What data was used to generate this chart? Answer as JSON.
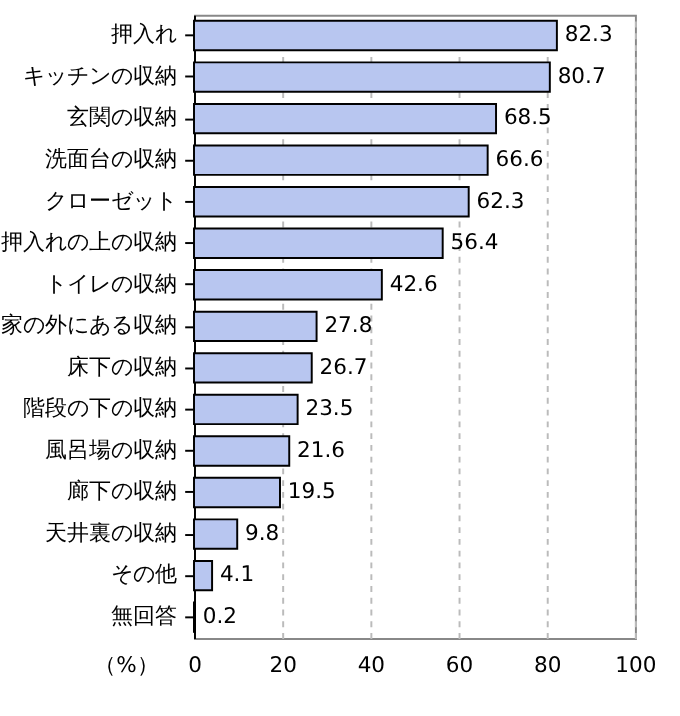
{
  "chart_data": {
    "type": "bar",
    "orientation": "horizontal",
    "xlabel": "（%）",
    "categories": [
      "押入れ",
      "キッチンの収納",
      "玄関の収納",
      "洗面台の収納",
      "クローゼット",
      "押入れの上の収納",
      "トイレの収納",
      "家の外にある収納",
      "床下の収納",
      "階段の下の収納",
      "風呂場の収納",
      "廊下の収納",
      "天井裏の収納",
      "その他",
      "無回答"
    ],
    "values": [
      82.3,
      80.7,
      68.5,
      66.6,
      62.3,
      56.4,
      42.6,
      27.8,
      26.7,
      23.5,
      21.6,
      19.5,
      9.8,
      4.1,
      0.2
    ],
    "color": "#b8c6f0",
    "xlim": [
      0,
      100
    ],
    "xticks": [
      0,
      20,
      40,
      60,
      80,
      100
    ],
    "grid": "x",
    "data_labels": true
  }
}
